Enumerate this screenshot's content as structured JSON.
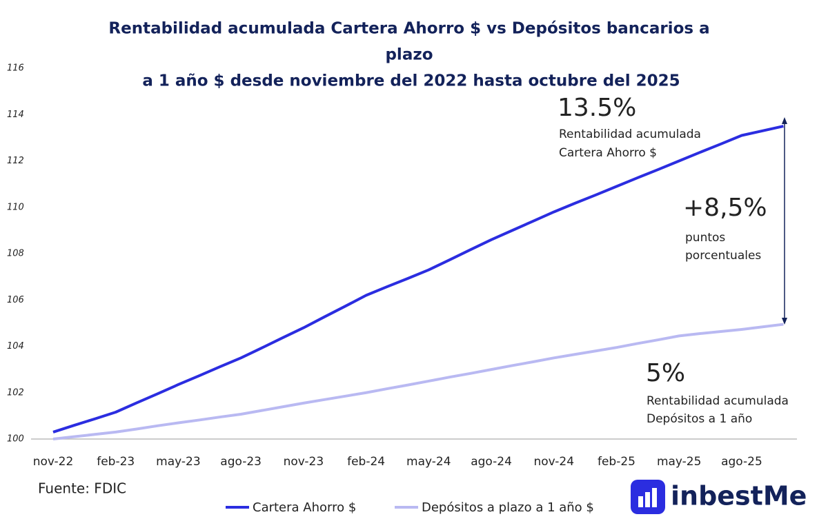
{
  "chart_data": {
    "type": "line",
    "title": [
      "Rentabilidad acumulada Cartera Ahorro $ vs Depósitos bancarios a",
      "plazo",
      "a 1 año $ desde noviembre del 2022 hasta octubre del 2025"
    ],
    "categories": [
      "nov-22",
      null,
      null,
      "feb-23",
      null,
      null,
      "may-23",
      null,
      null,
      "ago-23",
      null,
      null,
      "nov-23",
      null,
      null,
      "feb-24",
      null,
      null,
      "may-24",
      null,
      null,
      "ago-24",
      null,
      null,
      "nov-24",
      null,
      null,
      "feb-25",
      null,
      null,
      "may-25",
      null,
      null,
      "ago-25",
      null,
      null
    ],
    "series": [
      {
        "name": "Cartera Ahorro $",
        "color": "#2b2de0",
        "values": [
          100.3,
          100.59,
          100.87,
          101.16,
          101.56,
          101.95,
          102.35,
          102.73,
          103.12,
          103.5,
          103.93,
          104.37,
          104.8,
          105.27,
          105.73,
          106.2,
          106.57,
          106.93,
          107.3,
          107.73,
          108.17,
          108.6,
          109.0,
          109.4,
          109.8,
          110.17,
          110.53,
          110.9,
          111.27,
          111.63,
          112.0,
          112.37,
          112.73,
          113.1,
          113.3,
          113.5
        ]
      },
      {
        "name": "Depósitos a plazo a 1 año $",
        "color": "#b9b9f2",
        "values": [
          100,
          100.1,
          100.2,
          100.3,
          100.43,
          100.57,
          100.7,
          100.82,
          100.95,
          101.07,
          101.23,
          101.39,
          101.55,
          101.7,
          101.85,
          102.0,
          102.17,
          102.33,
          102.5,
          102.67,
          102.83,
          103.0,
          103.17,
          103.33,
          103.5,
          103.65,
          103.8,
          103.95,
          104.12,
          104.28,
          104.45,
          104.55,
          104.64,
          104.73,
          104.84,
          104.95
        ]
      }
    ],
    "ylim": [
      100,
      116
    ],
    "yticks": [
      100,
      102,
      104,
      106,
      108,
      110,
      112,
      114,
      116
    ],
    "annotations": {
      "cartera_value": "13.5%",
      "cartera_line1": "Rentabilidad acumulada",
      "cartera_line2": "Cartera Ahorro $",
      "diff_value": "+8,5%",
      "diff_line1": "puntos",
      "diff_line2": "porcentuales",
      "depositos_value": "5%",
      "depositos_line1": "Rentabilidad acumulada",
      "depositos_line2": "Depósitos a 1 año"
    },
    "source": "Fuente: FDIC",
    "logo": "inbestMe"
  }
}
